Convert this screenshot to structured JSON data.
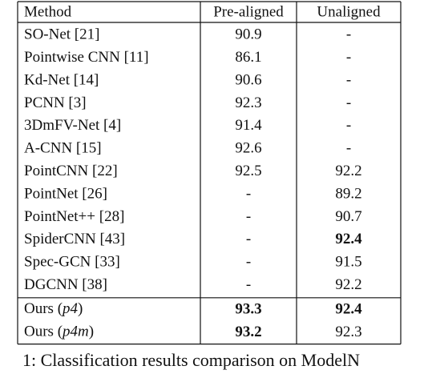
{
  "table": {
    "header": [
      "Method",
      "Pre-aligned",
      "Unaligned"
    ],
    "rows": [
      [
        "SO-Net [21]",
        "90.9",
        "-"
      ],
      [
        "Pointwise CNN [11]",
        "86.1",
        "-"
      ],
      [
        "Kd-Net [14]",
        "90.6",
        "-"
      ],
      [
        "PCNN [3]",
        "92.3",
        "-"
      ],
      [
        "3DmFV-Net [4]",
        "91.4",
        "-"
      ],
      [
        "A-CNN [15]",
        "92.6",
        "-"
      ],
      [
        "PointCNN [22]",
        "92.5",
        "92.2"
      ],
      [
        "PointNet [26]",
        "-",
        "89.2"
      ],
      [
        "PointNet++ [28]",
        "-",
        "90.7"
      ],
      [
        "SpiderCNN [43]",
        "-",
        "92.4"
      ],
      [
        "Spec-GCN [33]",
        "-",
        "91.5"
      ],
      [
        "DGCNN [38]",
        "-",
        "92.2"
      ],
      [
        [
          "Ours (",
          "p4",
          ")"
        ],
        "93.3",
        "92.4"
      ],
      [
        [
          "Ours (",
          "p4m",
          ")"
        ],
        "93.2",
        "92.3"
      ]
    ],
    "bold_cells": [
      [
        9,
        2
      ],
      [
        12,
        1
      ],
      [
        12,
        2
      ],
      [
        13,
        1
      ]
    ],
    "separator_before_row": 12
  },
  "caption": "1: Classification results comparison on ModelN"
}
